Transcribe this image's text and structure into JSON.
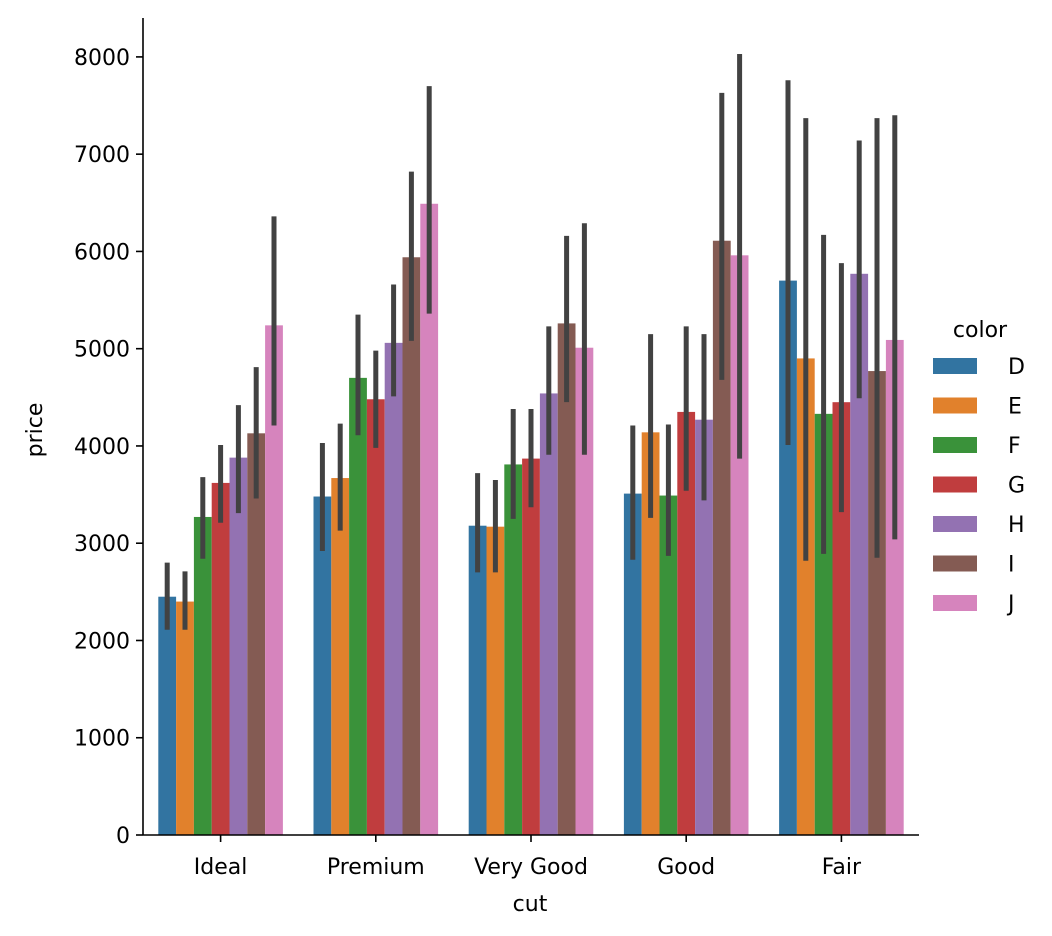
{
  "chart_data": {
    "type": "bar",
    "xlabel": "cut",
    "ylabel": "price",
    "ylim": [
      0,
      8400
    ],
    "yticks": [
      0,
      1000,
      2000,
      3000,
      4000,
      5000,
      6000,
      7000,
      8000
    ],
    "grid": false,
    "legend": {
      "title": "color",
      "placement": "right"
    },
    "categories": [
      "Ideal",
      "Premium",
      "Very Good",
      "Good",
      "Fair"
    ],
    "series": [
      {
        "name": "D",
        "color": "#3274a1",
        "values": [
          2450,
          3480,
          3180,
          3510,
          5700
        ],
        "ci_low": [
          2110,
          2920,
          2700,
          2830,
          4010
        ],
        "ci_high": [
          2800,
          4030,
          3720,
          4210,
          7760
        ]
      },
      {
        "name": "E",
        "color": "#e1812c",
        "values": [
          2400,
          3670,
          3170,
          4140,
          4900
        ],
        "ci_low": [
          2110,
          3130,
          2700,
          3260,
          2820
        ],
        "ci_high": [
          2710,
          4230,
          3650,
          5150,
          7370
        ]
      },
      {
        "name": "F",
        "color": "#3a923a",
        "values": [
          3270,
          4700,
          3810,
          3490,
          4330
        ],
        "ci_low": [
          2840,
          4110,
          3250,
          2870,
          2890
        ],
        "ci_high": [
          3680,
          5350,
          4380,
          4220,
          6170
        ]
      },
      {
        "name": "G",
        "color": "#c03d3e",
        "values": [
          3620,
          4480,
          3870,
          4350,
          4450
        ],
        "ci_low": [
          3210,
          3980,
          3370,
          3540,
          3320
        ],
        "ci_high": [
          4010,
          4980,
          4380,
          5230,
          5880
        ]
      },
      {
        "name": "H",
        "color": "#9372b2",
        "values": [
          3880,
          5060,
          4540,
          4270,
          5770
        ],
        "ci_low": [
          3310,
          4510,
          3910,
          3440,
          4490
        ],
        "ci_high": [
          4420,
          5660,
          5230,
          5150,
          7140
        ]
      },
      {
        "name": "I",
        "color": "#845b53",
        "values": [
          4130,
          5940,
          5260,
          6110,
          4770
        ],
        "ci_low": [
          3460,
          5080,
          4450,
          4680,
          2850
        ],
        "ci_high": [
          4810,
          6820,
          6160,
          7630,
          7370
        ]
      },
      {
        "name": "J",
        "color": "#d684bd",
        "values": [
          5240,
          6490,
          5010,
          5960,
          5090
        ],
        "ci_low": [
          4210,
          5360,
          3910,
          3870,
          3040
        ],
        "ci_high": [
          6360,
          7700,
          6290,
          8030,
          7400
        ]
      }
    ]
  }
}
